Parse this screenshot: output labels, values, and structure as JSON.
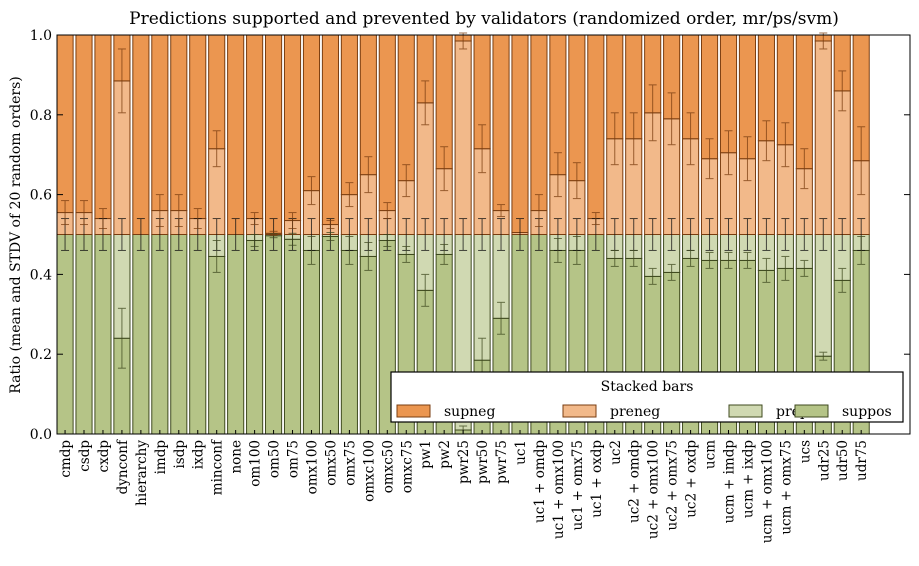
{
  "chart_data": {
    "type": "bar",
    "stacked": true,
    "title": "Predictions supported and prevented by validators (randomized order, mr/ps/svm)",
    "xlabel": "",
    "ylabel": "Ratio (mean and STDV of 20 random orders)",
    "ylim": [
      0,
      1
    ],
    "yticks": [
      "0.0",
      "0.2",
      "0.4",
      "0.6",
      "0.8",
      "1.0"
    ],
    "grid": false,
    "legend": {
      "title": "Stacked bars",
      "placement": "lower-right",
      "entries": [
        "supneg",
        "preneg",
        "prepos",
        "suppos"
      ]
    },
    "colors": {
      "supneg": "#eb9650",
      "preneg": "#f2b98a",
      "prepos": "#d0d9b2",
      "suppos": "#b5c487"
    },
    "categories": [
      "cmdp",
      "csdp",
      "cxdp",
      "dynconf",
      "hierarchy",
      "imdp",
      "isdp",
      "ixdp",
      "minconf",
      "none",
      "om100",
      "om50",
      "om75",
      "omx100",
      "omx50",
      "omx75",
      "omxc100",
      "omxc50",
      "omxc75",
      "pw1",
      "pw2",
      "pwr25",
      "pwr50",
      "pwr75",
      "uc1",
      "uc1 + omdp",
      "uc1 + omx100",
      "uc1 + omx75",
      "uc1 + oxdp",
      "uc2",
      "uc2 + omdp",
      "uc2 + omx100",
      "uc2 + omx75",
      "uc2 + oxdp",
      "ucm",
      "ucm + imdp",
      "ucm + ixdp",
      "ucm + omx100",
      "ucm + omx75",
      "ucs",
      "udr25",
      "udr50",
      "udr75"
    ],
    "series": [
      {
        "name": "suppos",
        "values": [
          0.5,
          0.5,
          0.5,
          0.24,
          0.5,
          0.5,
          0.5,
          0.5,
          0.445,
          0.5,
          0.485,
          0.497,
          0.488,
          0.46,
          0.495,
          0.46,
          0.445,
          0.485,
          0.45,
          0.36,
          0.45,
          0.01,
          0.185,
          0.29,
          0.5,
          0.5,
          0.46,
          0.46,
          0.5,
          0.44,
          0.44,
          0.395,
          0.405,
          0.44,
          0.435,
          0.435,
          0.435,
          0.41,
          0.415,
          0.415,
          0.195,
          0.385,
          0.46
        ],
        "std": [
          0,
          0,
          0,
          0.075,
          0,
          0,
          0,
          0,
          0.04,
          0,
          0.015,
          0.005,
          0.015,
          0.035,
          0.01,
          0.035,
          0.035,
          0.015,
          0.02,
          0.04,
          0.025,
          0.01,
          0.055,
          0.04,
          0,
          0,
          0.03,
          0.035,
          0,
          0.02,
          0.02,
          0.02,
          0.02,
          0.02,
          0.02,
          0.02,
          0.02,
          0.03,
          0.03,
          0.02,
          0.01,
          0.03,
          0.035
        ]
      },
      {
        "name": "prepos",
        "values": [
          0,
          0,
          0,
          0.26,
          0,
          0,
          0,
          0,
          0.055,
          0,
          0.015,
          0.003,
          0.012,
          0.04,
          0.005,
          0.04,
          0.055,
          0.015,
          0.05,
          0.14,
          0.05,
          0.49,
          0.315,
          0.21,
          0,
          0,
          0.04,
          0.04,
          0,
          0.06,
          0.06,
          0.105,
          0.095,
          0.06,
          0.065,
          0.065,
          0.065,
          0.09,
          0.085,
          0.085,
          0.305,
          0.115,
          0.04
        ]
      },
      {
        "name": "preneg",
        "values": [
          0.055,
          0.055,
          0.04,
          0.385,
          0,
          0.06,
          0.06,
          0.04,
          0.215,
          0,
          0.04,
          0.003,
          0.035,
          0.11,
          0.025,
          0.1,
          0.15,
          0.06,
          0.135,
          0.33,
          0.165,
          0.485,
          0.215,
          0.06,
          0.005,
          0.06,
          0.15,
          0.135,
          0.04,
          0.24,
          0.24,
          0.305,
          0.29,
          0.24,
          0.19,
          0.205,
          0.19,
          0.235,
          0.225,
          0.165,
          0.485,
          0.36,
          0.185
        ],
        "std": [
          0.03,
          0.03,
          0.025,
          0.08,
          0,
          0.04,
          0.04,
          0.025,
          0.045,
          0,
          0.015,
          0.005,
          0.02,
          0.035,
          0.01,
          0.03,
          0.045,
          0.02,
          0.04,
          0.055,
          0.055,
          0.02,
          0.06,
          0.015,
          0,
          0.04,
          0.055,
          0.045,
          0.015,
          0.065,
          0.065,
          0.07,
          0.065,
          0.065,
          0.05,
          0.055,
          0.055,
          0.05,
          0.055,
          0.05,
          0.02,
          0.05,
          0.085
        ]
      },
      {
        "name": "supneg",
        "values": [
          0.445,
          0.445,
          0.46,
          0.115,
          0.5,
          0.44,
          0.44,
          0.46,
          0.285,
          0.5,
          0.46,
          0.497,
          0.465,
          0.39,
          0.475,
          0.4,
          0.35,
          0.44,
          0.365,
          0.17,
          0.335,
          0.015,
          0.285,
          0.44,
          0.495,
          0.44,
          0.35,
          0.365,
          0.46,
          0.26,
          0.26,
          0.195,
          0.21,
          0.26,
          0.31,
          0.295,
          0.31,
          0.265,
          0.275,
          0.335,
          0.015,
          0.14,
          0.315
        ]
      }
    ],
    "midline_std": 0.04
  }
}
